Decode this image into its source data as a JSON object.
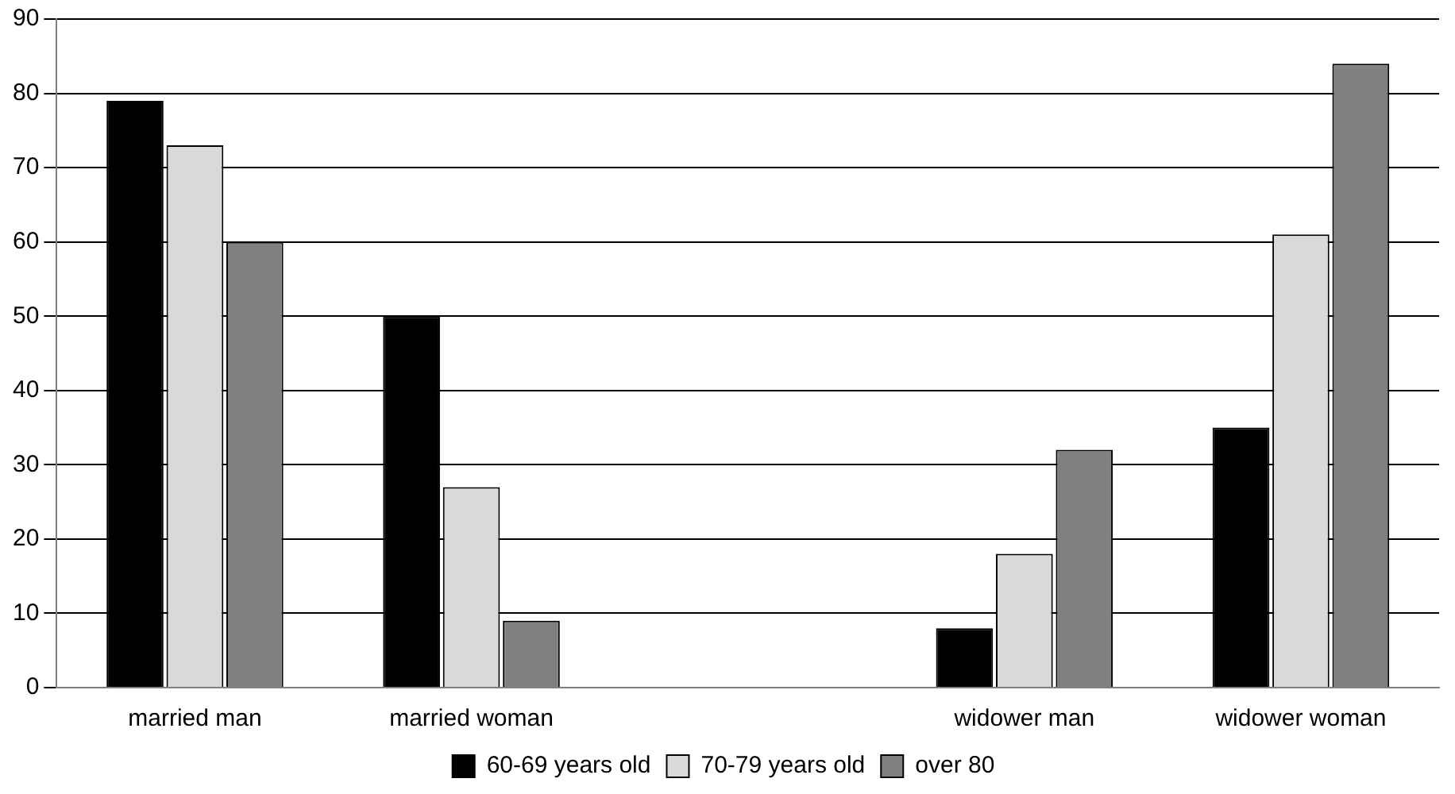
{
  "chart_data": {
    "type": "bar",
    "categories": [
      "married man",
      "married woman",
      null,
      "widower man",
      "widower woman"
    ],
    "series": [
      {
        "name": "60-69 years old",
        "color": "#000000",
        "values": [
          79,
          50,
          null,
          8,
          35
        ]
      },
      {
        "name": "70-79 years old",
        "color": "#d9d9d9",
        "values": [
          73,
          27,
          null,
          18,
          61
        ]
      },
      {
        "name": "over 80",
        "color": "#808080",
        "values": [
          60,
          9,
          null,
          32,
          84
        ]
      }
    ],
    "ylim": [
      0,
      90
    ],
    "yticks": [
      0,
      10,
      20,
      30,
      40,
      50,
      60,
      70,
      80,
      90
    ],
    "grid": "y",
    "legend": "bottom"
  }
}
